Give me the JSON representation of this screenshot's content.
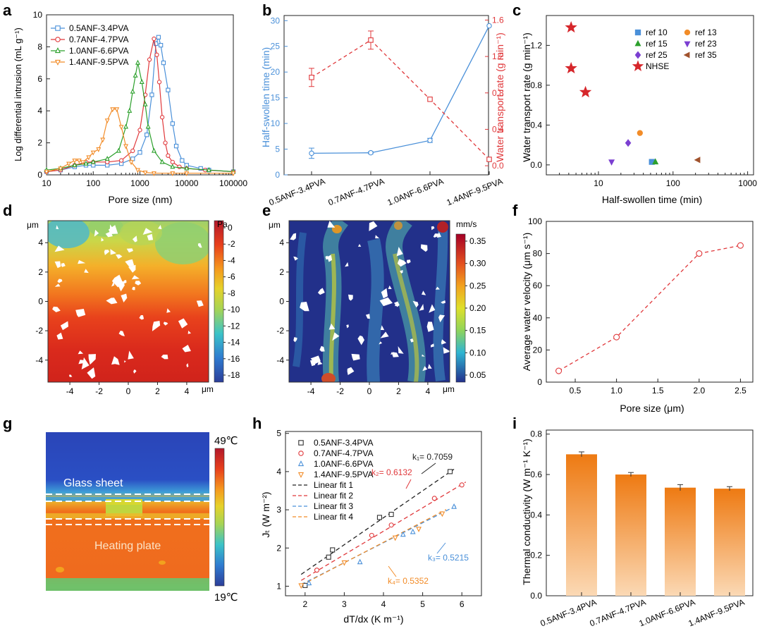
{
  "panel_letters": [
    "a",
    "b",
    "c",
    "d",
    "e",
    "f",
    "g",
    "h",
    "i"
  ],
  "colors": {
    "s1": "#4a90d9",
    "s2": "#e0383b",
    "s3": "#2ca02c",
    "s4": "#f28c28",
    "blue_axis": "#4a90d9",
    "red_axis": "#e0383b",
    "bar_top": "#ee7a12",
    "bar_bottom": "#fbd9b5"
  },
  "chart_data": [
    {
      "panel": "a",
      "type": "line",
      "xlabel": "Pore size (nm)",
      "ylabel": "Log differential intrusion (mL g⁻¹)",
      "xscale": "log",
      "xlim": [
        10,
        100000
      ],
      "ylim": [
        0,
        10
      ],
      "xticks": [
        10,
        100,
        1000,
        10000,
        100000
      ],
      "xtick_labels": [
        "10",
        "100",
        "1000",
        "10000",
        "100000"
      ],
      "yticks": [
        0,
        2,
        4,
        6,
        8,
        10
      ],
      "legend_position": "top-left",
      "series": [
        {
          "name": "0.5ANF-3.4PVA",
          "marker": "square",
          "color": "#4a90d9",
          "points": [
            [
              10,
              0.2
            ],
            [
              20,
              0.3
            ],
            [
              40,
              0.5
            ],
            [
              70,
              0.6
            ],
            [
              100,
              0.6
            ],
            [
              200,
              0.6
            ],
            [
              400,
              0.7
            ],
            [
              700,
              1.0
            ],
            [
              1000,
              1.4
            ],
            [
              1400,
              2.5
            ],
            [
              1800,
              5.0
            ],
            [
              2200,
              8.2
            ],
            [
              2500,
              8.6
            ],
            [
              2800,
              8.1
            ],
            [
              3200,
              7.0
            ],
            [
              4000,
              5.3
            ],
            [
              5000,
              3.2
            ],
            [
              6000,
              1.8
            ],
            [
              8000,
              0.9
            ],
            [
              10000,
              0.6
            ],
            [
              20000,
              0.4
            ],
            [
              30000,
              0.3
            ],
            [
              100000,
              0.2
            ]
          ]
        },
        {
          "name": "0.7ANF-4.7PVA",
          "marker": "circle",
          "color": "#e0383b",
          "points": [
            [
              10,
              0.2
            ],
            [
              20,
              0.3
            ],
            [
              40,
              0.6
            ],
            [
              70,
              0.8
            ],
            [
              100,
              0.8
            ],
            [
              200,
              0.8
            ],
            [
              400,
              0.9
            ],
            [
              700,
              1.5
            ],
            [
              1000,
              2.8
            ],
            [
              1300,
              5.0
            ],
            [
              1600,
              7.2
            ],
            [
              2000,
              8.5
            ],
            [
              2300,
              7.5
            ],
            [
              2600,
              5.8
            ],
            [
              3000,
              3.6
            ],
            [
              3500,
              2.0
            ],
            [
              4000,
              1.2
            ],
            [
              5000,
              0.8
            ],
            [
              7000,
              0.5
            ],
            [
              10000,
              0.4
            ],
            [
              25000,
              0.3
            ],
            [
              100000,
              0.2
            ]
          ]
        },
        {
          "name": "1.0ANF-6.6PVA",
          "marker": "triangle-up",
          "color": "#2ca02c",
          "points": [
            [
              10,
              0.3
            ],
            [
              20,
              0.4
            ],
            [
              40,
              0.6
            ],
            [
              70,
              0.7
            ],
            [
              100,
              0.8
            ],
            [
              200,
              1.0
            ],
            [
              350,
              1.5
            ],
            [
              500,
              3.0
            ],
            [
              600,
              4.0
            ],
            [
              700,
              5.2
            ],
            [
              800,
              6.2
            ],
            [
              900,
              7.0
            ],
            [
              1100,
              5.8
            ],
            [
              1300,
              4.4
            ],
            [
              1500,
              3.0
            ],
            [
              2000,
              1.5
            ],
            [
              3000,
              0.8
            ],
            [
              5000,
              0.5
            ],
            [
              10000,
              0.4
            ],
            [
              30000,
              0.3
            ],
            [
              100000,
              0.2
            ]
          ]
        },
        {
          "name": "1.4ANF-9.5PVA",
          "marker": "triangle-down",
          "color": "#f28c28",
          "points": [
            [
              10,
              0.2
            ],
            [
              20,
              0.4
            ],
            [
              30,
              0.7
            ],
            [
              40,
              0.9
            ],
            [
              50,
              0.9
            ],
            [
              60,
              0.8
            ],
            [
              80,
              1.1
            ],
            [
              100,
              1.4
            ],
            [
              130,
              1.6
            ],
            [
              160,
              2.2
            ],
            [
              200,
              3.4
            ],
            [
              260,
              4.1
            ],
            [
              320,
              4.1
            ],
            [
              400,
              3.0
            ],
            [
              500,
              1.8
            ],
            [
              650,
              0.8
            ],
            [
              900,
              0.3
            ],
            [
              1300,
              0.15
            ],
            [
              2000,
              0.1
            ],
            [
              5000,
              0.1
            ],
            [
              10000,
              0.1
            ],
            [
              100000,
              0.1
            ]
          ]
        }
      ]
    },
    {
      "panel": "b",
      "type": "line",
      "categories": [
        "0.5ANF-3.4PVA",
        "0.7ANF-4.7PVA",
        "1.0ANF-6.6PVA",
        "1.4ANF-9.5PVA"
      ],
      "ylabel": "Half-swollen time (min)",
      "ylabel2": "Water transport rate (g min⁻¹)",
      "ylim": [
        0,
        31
      ],
      "yticks": [
        0,
        5,
        10,
        15,
        20,
        25,
        30
      ],
      "ylim2": [
        -0.1,
        1.65
      ],
      "yticks2": [
        0.0,
        0.4,
        0.8,
        1.2,
        1.6
      ],
      "yticks2_labels": [
        "0.0",
        "0.4",
        "0.8",
        "1.2",
        "1.6"
      ],
      "series": [
        {
          "name": "",
          "axis": "left",
          "color": "#4a90d9",
          "marker": "circle",
          "style": "solid",
          "values": [
            4.2,
            4.3,
            6.7,
            29
          ],
          "errors": [
            1.0,
            0.2,
            0.4,
            0
          ]
        },
        {
          "name": "",
          "axis": "right",
          "color": "#e0383b",
          "marker": "square",
          "style": "dashed",
          "values": [
            0.97,
            1.38,
            0.73,
            0.07
          ],
          "errors": [
            0.1,
            0.1,
            0,
            0
          ]
        }
      ]
    },
    {
      "panel": "c",
      "type": "scatter",
      "xlabel": "Half-swollen time (min)",
      "ylabel": "Water transport rate (g min⁻¹)",
      "xscale": "log",
      "xlim": [
        2,
        1200
      ],
      "ylim": [
        -0.1,
        1.5
      ],
      "xticks": [
        10,
        100,
        1000
      ],
      "xtick_labels": [
        "10",
        "100",
        "1000"
      ],
      "yticks": [
        0.0,
        0.4,
        0.8,
        1.2
      ],
      "ytick_labels": [
        "0.0",
        "0.4",
        "0.8",
        "1.2"
      ],
      "legend_position": "top-right",
      "series": [
        {
          "name": "ref 10",
          "marker": "square",
          "color": "#4a90d9",
          "points": [
            [
              52,
              0.03
            ]
          ]
        },
        {
          "name": "ref 13",
          "marker": "circle",
          "color": "#f28c28",
          "points": [
            [
              36,
              0.32
            ]
          ]
        },
        {
          "name": "ref 15",
          "marker": "triangle-up",
          "color": "#2ca02c",
          "points": [
            [
              58,
              0.03
            ]
          ]
        },
        {
          "name": "ref 23",
          "marker": "triangle-down",
          "color": "#7b3fd1",
          "points": [
            [
              15,
              0.03
            ]
          ]
        },
        {
          "name": "ref 25",
          "marker": "diamond",
          "color": "#7b3fd1",
          "points": [
            [
              25,
              0.22
            ]
          ]
        },
        {
          "name": "ref 35",
          "marker": "triangle-left",
          "color": "#a0522d",
          "points": [
            [
              215,
              0.05
            ]
          ]
        },
        {
          "name": "NHSE",
          "marker": "star",
          "color": "#d6262b",
          "points": [
            [
              4.3,
              1.38
            ],
            [
              4.3,
              0.97
            ],
            [
              6.7,
              0.73
            ]
          ]
        }
      ]
    },
    {
      "panel": "d",
      "type": "heatmap",
      "unit": "Pa",
      "xtick_labels": [
        "-4",
        "-2",
        "0",
        "2",
        "4"
      ],
      "ytick_labels": [
        "4",
        "2",
        "0",
        "-2",
        "-4"
      ],
      "axis_unit": "μm",
      "colorbar_ticks": [
        "0",
        "-2",
        "-4",
        "-6",
        "-8",
        "-10",
        "-12",
        "-14",
        "-16",
        "-18"
      ],
      "colorbar_range": [
        -20,
        1.5
      ]
    },
    {
      "panel": "e",
      "type": "heatmap",
      "unit": "mm/s",
      "xtick_labels": [
        "-4",
        "-2",
        "0",
        "2",
        "4"
      ],
      "ytick_labels": [
        "4",
        "2",
        "0",
        "-2",
        "-4"
      ],
      "axis_unit": "μm",
      "colorbar_ticks": [
        "0.35",
        "0.30",
        "0.25",
        "0.20",
        "0.15",
        "0.10",
        "0.05"
      ],
      "colorbar_range": [
        0.0,
        0.37
      ]
    },
    {
      "panel": "f",
      "type": "line",
      "xlabel": "Pore size (μm)",
      "ylabel": "Average water velocity (μm s⁻¹)",
      "xlim": [
        0.15,
        2.65
      ],
      "ylim": [
        0,
        100
      ],
      "xticks": [
        0.5,
        1.0,
        1.5,
        2.0,
        2.5
      ],
      "xtick_labels": [
        "0.5",
        "1.0",
        "1.5",
        "2.0",
        "2.5"
      ],
      "yticks": [
        0,
        20,
        40,
        60,
        80,
        100
      ],
      "series": [
        {
          "name": "",
          "marker": "circle",
          "color": "#e0383b",
          "style": "dashed",
          "points": [
            [
              0.3,
              7
            ],
            [
              1.0,
              28
            ],
            [
              2.0,
              80
            ],
            [
              2.5,
              85
            ]
          ]
        }
      ]
    },
    {
      "panel": "g",
      "type": "heatmap",
      "labels": [
        "Glass sheet",
        "Heating plate"
      ],
      "colorbar_ticks": [
        "49℃",
        "19℃"
      ]
    },
    {
      "panel": "h",
      "type": "scatter",
      "xlabel": "dT/dx (K m⁻¹)",
      "ylabel": "Jₜ (W m⁻²)",
      "xlim": [
        1.5,
        6.5
      ],
      "ylim": [
        0.75,
        5.05
      ],
      "xticks": [
        2,
        3,
        4,
        5,
        6
      ],
      "yticks": [
        1,
        2,
        3,
        4,
        5
      ],
      "legend_position": "top-left",
      "series": [
        {
          "name": "0.5ANF-3.4PVA",
          "marker": "square",
          "color": "#333333",
          "points": [
            [
              2.0,
              1.02
            ],
            [
              2.6,
              1.76
            ],
            [
              2.7,
              1.95
            ],
            [
              3.9,
              2.8
            ],
            [
              4.2,
              2.88
            ],
            [
              5.7,
              4.0
            ]
          ]
        },
        {
          "name": "0.7ANF-4.7PVA",
          "marker": "circle",
          "color": "#e0383b",
          "points": [
            [
              2.3,
              1.42
            ],
            [
              3.7,
              2.33
            ],
            [
              4.2,
              2.6
            ],
            [
              5.3,
              3.3
            ],
            [
              6.0,
              3.65
            ]
          ]
        },
        {
          "name": "1.0ANF-6.6PVA",
          "marker": "triangle-up",
          "color": "#4a90d9",
          "points": [
            [
              2.1,
              1.08
            ],
            [
              3.4,
              1.63
            ],
            [
              4.5,
              2.35
            ],
            [
              4.75,
              2.42
            ],
            [
              5.8,
              3.08
            ]
          ]
        },
        {
          "name": "1.4ANF-9.5PVA",
          "marker": "triangle-down",
          "color": "#f28c28",
          "points": [
            [
              1.9,
              1.02
            ],
            [
              3.0,
              1.62
            ],
            [
              4.3,
              2.27
            ],
            [
              4.9,
              2.5
            ],
            [
              5.5,
              2.9
            ]
          ]
        }
      ],
      "fits": [
        {
          "name": "Linear fit 1",
          "color": "#222222",
          "slope": 0.7059,
          "intercept": -0.0315,
          "x_range": [
            1.9,
            5.8
          ]
        },
        {
          "name": "Linear fit 2",
          "color": "#e0383b",
          "slope": 0.6132,
          "intercept": -0.0137,
          "x_range": [
            1.9,
            6.1
          ]
        },
        {
          "name": "Linear fit 3",
          "color": "#4a90d9",
          "slope": 0.5215,
          "intercept": 0.052,
          "x_range": [
            1.9,
            5.9
          ]
        },
        {
          "name": "Linear fit 4",
          "color": "#f28c28",
          "slope": 0.5352,
          "intercept": 0.009,
          "x_range": [
            1.9,
            5.6
          ]
        }
      ],
      "annotations": [
        {
          "text": "k₁= 0.7059",
          "color": "#222222"
        },
        {
          "text": "k₂= 0.6132",
          "color": "#e0383b"
        },
        {
          "text": "k₃= 0.5215",
          "color": "#4a90d9"
        },
        {
          "text": "k₄= 0.5352",
          "color": "#f28c28"
        }
      ]
    },
    {
      "panel": "i",
      "type": "bar",
      "ylabel": "Thermal conductivity (W m⁻¹ K⁻¹)",
      "categories": [
        "0.5ANF-3.4PVA",
        "0.7ANF-4.7PVA",
        "1.0ANF-6.6PVA",
        "1.4ANF-9.5PVA"
      ],
      "values": [
        0.7,
        0.6,
        0.535,
        0.53
      ],
      "errors": [
        0.012,
        0.01,
        0.015,
        0.01
      ],
      "ylim": [
        0,
        0.82
      ],
      "yticks": [
        0.0,
        0.2,
        0.4,
        0.6,
        0.8
      ],
      "ytick_labels": [
        "0.0",
        "0.2",
        "0.4",
        "0.6",
        "0.8"
      ]
    }
  ]
}
